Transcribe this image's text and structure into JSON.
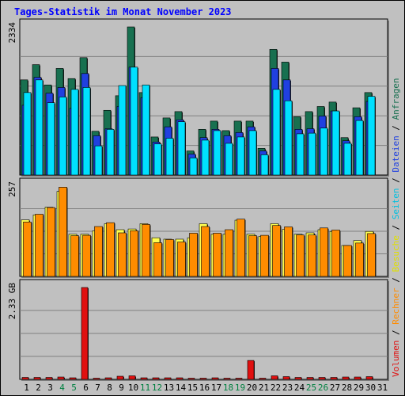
{
  "title": "Tages-Statistik im Monat November 2023",
  "colors": {
    "background": "#c0c0c0",
    "panel": "#c0c0c0",
    "grid": "#808080",
    "anfragen": "#187050",
    "dateien": "#2040e0",
    "seiten": "#00e0ff",
    "besuche": "#ffff50",
    "rechner": "#ff8c00",
    "volumen": "#e01010",
    "weekend_label": "#008040",
    "weekday_label": "#000000"
  },
  "legend": {
    "separator": " / ",
    "items": [
      {
        "label": "Volumen",
        "color": "#e01010"
      },
      {
        "label": "Rechner",
        "color": "#ff8c00"
      },
      {
        "label": "Besuche",
        "color": "#e0e000"
      },
      {
        "label": "Seiten",
        "color": "#00c0e0"
      },
      {
        "label": "Dateien",
        "color": "#2040e0"
      },
      {
        "label": "Anfragen",
        "color": "#187050"
      }
    ]
  },
  "chart_data": {
    "type": "bar",
    "categories": [
      "1",
      "2",
      "3",
      "4",
      "5",
      "6",
      "7",
      "8",
      "9",
      "10",
      "11",
      "12",
      "13",
      "14",
      "15",
      "16",
      "17",
      "18",
      "19",
      "20",
      "21",
      "22",
      "23",
      "24",
      "25",
      "26",
      "27",
      "28",
      "29",
      "30",
      "31"
    ],
    "weekend_days": [
      4,
      5,
      11,
      12,
      18,
      19,
      25,
      26
    ],
    "panels": [
      {
        "name": "hits",
        "ymax_label": "2334",
        "ymax": 2334,
        "series": [
          {
            "name": "Anfragen",
            "values": [
              1500,
              1740,
              1420,
              1680,
              1520,
              1850,
              690,
              1020,
              1250,
              2334,
              1300,
              600,
              900,
              1000,
              380,
              720,
              850,
              700,
              850,
              850,
              420,
              1980,
              1780,
              920,
              1000,
              1080,
              1150,
              590,
              1060,
              1300,
              0
            ]
          },
          {
            "name": "Dateien",
            "values": [
              1100,
              1540,
              1290,
              1380,
              1050,
              1600,
              620,
              730,
              1080,
              1700,
              1220,
              520,
              760,
              870,
              330,
              590,
              720,
              620,
              670,
              760,
              380,
              1680,
              1500,
              720,
              730,
              930,
              1010,
              540,
              920,
              1160,
              0
            ]
          },
          {
            "name": "Seiten",
            "values": [
              1300,
              1500,
              1140,
              1230,
              1350,
              1380,
              460,
              720,
              1410,
              1700,
              1420,
              490,
              580,
              840,
              270,
              550,
              700,
              500,
              600,
              700,
              320,
              1350,
              1170,
              650,
              660,
              740,
              1010,
              500,
              860,
              1240,
              0
            ]
          }
        ]
      },
      {
        "name": "visits",
        "ymax_label": "257",
        "ymax": 257,
        "series": [
          {
            "name": "Besuche",
            "values": [
              161,
              175,
              197,
              242,
              120,
              120,
              130,
              150,
              133,
              135,
              150,
              110,
              106,
              106,
              110,
              150,
              120,
              120,
              160,
              120,
              114,
              150,
              134,
              120,
              124,
              133,
              128,
              88,
              102,
              128,
              0
            ]
          },
          {
            "name": "Rechner",
            "values": [
              155,
              177,
              196,
              254,
              116,
              117,
              142,
              153,
              124,
              130,
              148,
              96,
              105,
              98,
              123,
              142,
              123,
              133,
              163,
              116,
              117,
              145,
              141,
              118,
              118,
              138,
              132,
              88,
              95,
              122,
              0
            ]
          }
        ]
      },
      {
        "name": "volume",
        "ymax_label": "2.33 GB",
        "ymax": 2.33,
        "series": [
          {
            "name": "Volumen",
            "values": [
              0.05,
              0.05,
              0.05,
              0.06,
              0.04,
              2.33,
              0.03,
              0.04,
              0.08,
              0.09,
              0.04,
              0.04,
              0.04,
              0.04,
              0.03,
              0.03,
              0.04,
              0.03,
              0.03,
              0.48,
              0.03,
              0.09,
              0.07,
              0.05,
              0.05,
              0.05,
              0.05,
              0.06,
              0.06,
              0.07,
              0
            ]
          }
        ]
      }
    ]
  }
}
